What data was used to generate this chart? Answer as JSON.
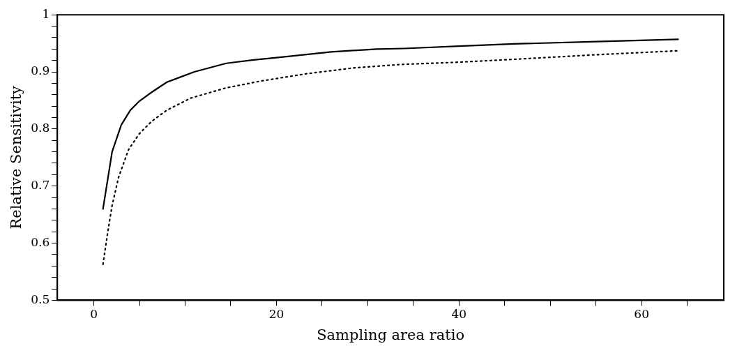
{
  "chart_data": {
    "type": "line",
    "xlabel": "Sampling area ratio",
    "ylabel": "Relative Sensitivity",
    "xlim": [
      -4,
      69
    ],
    "ylim": [
      0.5,
      1
    ],
    "xticks": [
      0,
      {
        "value": 5,
        "label": null
      },
      {
        "value": 10,
        "label": null
      },
      {
        "value": 15,
        "label": null
      },
      20,
      {
        "value": 25,
        "label": null
      },
      {
        "value": 30,
        "label": null
      },
      {
        "value": 35,
        "label": null
      },
      40,
      {
        "value": 45,
        "label": null
      },
      {
        "value": 50,
        "label": null
      },
      {
        "value": 55,
        "label": null
      },
      60,
      {
        "value": 65,
        "label": null
      }
    ],
    "yticks": [
      0.5,
      {
        "value": 0.52,
        "label": null
      },
      {
        "value": 0.54,
        "label": null
      },
      {
        "value": 0.56,
        "label": null
      },
      {
        "value": 0.58,
        "label": null
      },
      0.6,
      {
        "value": 0.62,
        "label": null
      },
      {
        "value": 0.64,
        "label": null
      },
      {
        "value": 0.66,
        "label": null
      },
      {
        "value": 0.68,
        "label": null
      },
      0.7,
      {
        "value": 0.72,
        "label": null
      },
      {
        "value": 0.74,
        "label": null
      },
      {
        "value": 0.76,
        "label": null
      },
      {
        "value": 0.78,
        "label": null
      },
      0.8,
      {
        "value": 0.82,
        "label": null
      },
      {
        "value": 0.84,
        "label": null
      },
      {
        "value": 0.86,
        "label": null
      },
      {
        "value": 0.88,
        "label": null
      },
      0.9,
      {
        "value": 0.92,
        "label": null
      },
      {
        "value": 0.94,
        "label": null
      },
      {
        "value": 0.96,
        "label": null
      },
      {
        "value": 0.98,
        "label": null
      },
      1
    ],
    "grid": false,
    "legend": false,
    "series": [
      {
        "color": "#000000",
        "line_style": "solid",
        "x": [
          1,
          2,
          3,
          4,
          5,
          6.3,
          8,
          11,
          14.5,
          17.5,
          20,
          26,
          31,
          34,
          40,
          46,
          55,
          64
        ],
        "values": [
          0.66,
          0.76,
          0.807,
          0.833,
          0.849,
          0.864,
          0.882,
          0.9,
          0.915,
          0.921,
          0.925,
          0.935,
          0.94,
          0.941,
          0.945,
          0.949,
          0.953,
          0.957
        ]
      },
      {
        "color": "#000000",
        "line_style": "dotted",
        "x": [
          1,
          1.5,
          2,
          2.7,
          3.8,
          5,
          6.3,
          8,
          10.6,
          14.5,
          18.3,
          23.4,
          28.5,
          33.6,
          40,
          46,
          55,
          64
        ],
        "values": [
          0.563,
          0.617,
          0.666,
          0.715,
          0.764,
          0.792,
          0.813,
          0.833,
          0.854,
          0.872,
          0.884,
          0.897,
          0.907,
          0.913,
          0.917,
          0.922,
          0.93,
          0.937
        ]
      }
    ]
  }
}
